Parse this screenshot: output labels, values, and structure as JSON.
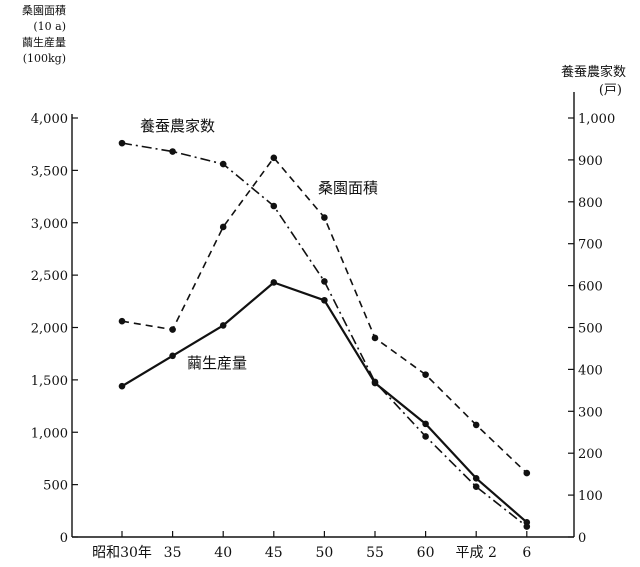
{
  "chart_data": {
    "type": "line",
    "categories": [
      "昭和30年",
      "35",
      "40",
      "45",
      "50",
      "55",
      "60",
      "平成 2",
      "6"
    ],
    "left_axis": {
      "title_lines": [
        "桑園面積",
        "(10 a)",
        "繭生産量",
        "(100kg)"
      ],
      "ticks": [
        "0",
        "500",
        "1,000",
        "1,500",
        "2,000",
        "2,500",
        "3,000",
        "3,500",
        "4,000"
      ],
      "ylim": [
        0,
        4000
      ]
    },
    "right_axis": {
      "title_lines": [
        "養蚕農家数",
        "(戸)"
      ],
      "ticks": [
        "0",
        "100",
        "200",
        "300",
        "400",
        "500",
        "600",
        "700",
        "800",
        "900",
        "1,000"
      ],
      "ylim": [
        0,
        1000
      ]
    },
    "series": [
      {
        "name": "繭生産量",
        "axis": "left",
        "style": "solid",
        "values": [
          1440,
          1730,
          2020,
          2430,
          2260,
          1470,
          1080,
          560,
          140
        ]
      },
      {
        "name": "桑園面積",
        "axis": "left",
        "style": "dashed",
        "values": [
          2060,
          1980,
          2960,
          3620,
          3050,
          1900,
          1550,
          1070,
          610
        ]
      },
      {
        "name": "養蚕農家数",
        "axis": "right",
        "style": "dashdot",
        "values": [
          940,
          920,
          890,
          790,
          610,
          370,
          240,
          120,
          25
        ]
      }
    ],
    "grid": false,
    "legend": "inline labels"
  }
}
